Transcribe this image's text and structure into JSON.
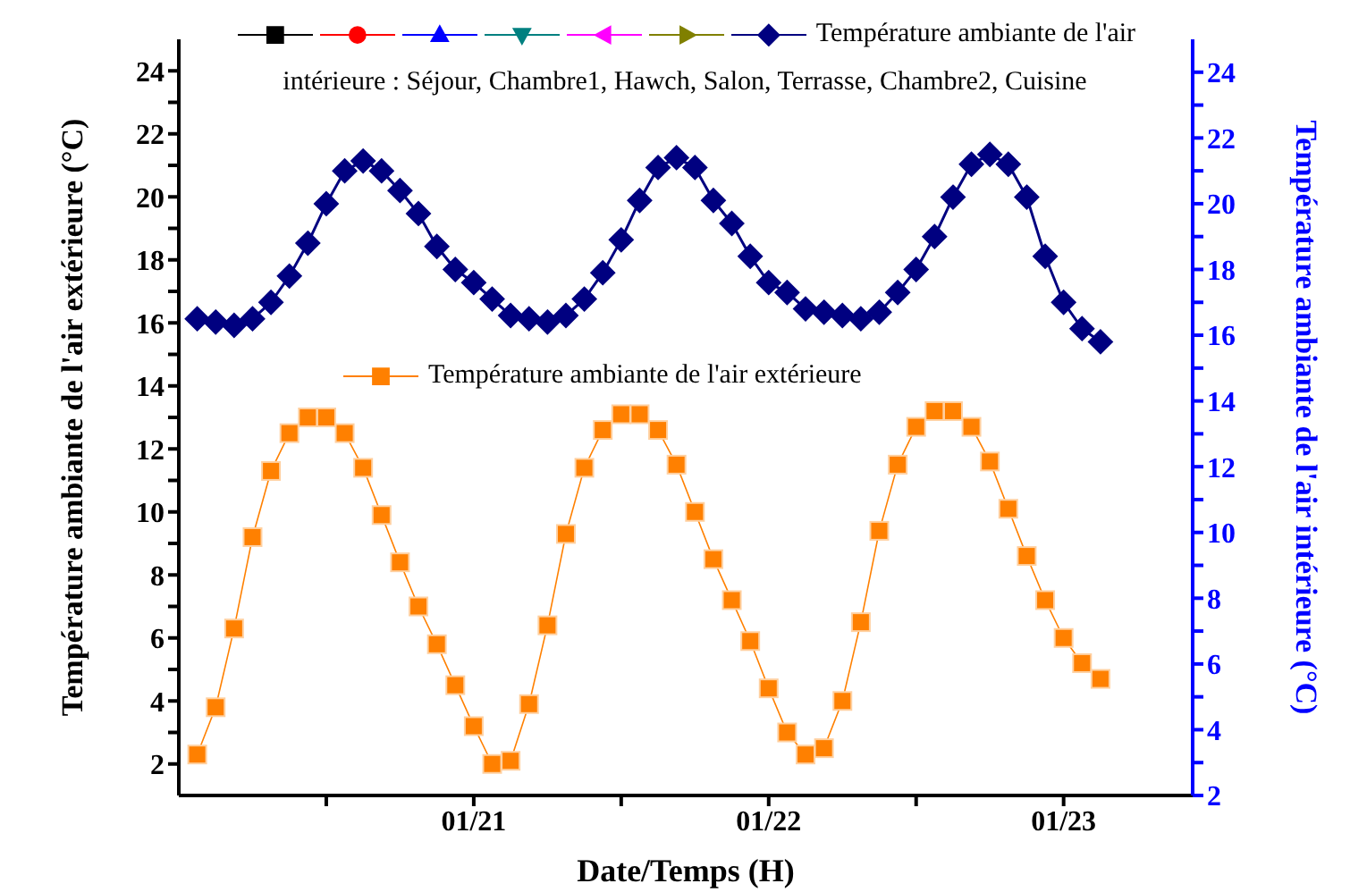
{
  "chart_data": {
    "type": "line",
    "xlabel": "Date/Temps (H)",
    "ylabel": "Température ambiante de l'air extérieure (°C)",
    "y2label": "Température ambiante de l'air intérieure (°C)",
    "legend": "top",
    "line_style": "solid",
    "x": [
      "--01-20T01:30",
      "--01-20T03:00",
      "--01-20T04:30",
      "--01-20T06:00",
      "--01-20T07:30",
      "--01-20T09:00",
      "--01-20T10:30",
      "--01-20T12:00",
      "--01-20T13:30",
      "--01-20T15:00",
      "--01-20T16:30",
      "--01-20T18:00",
      "--01-20T19:30",
      "--01-20T21:00",
      "--01-20T22:30",
      "--01-21T00:00",
      "--01-21T01:30",
      "--01-21T03:00",
      "--01-21T04:30",
      "--01-21T06:00",
      "--01-21T07:30",
      "--01-21T09:00",
      "--01-21T10:30",
      "--01-21T12:00",
      "--01-21T13:30",
      "--01-21T15:00",
      "--01-21T16:30",
      "--01-21T18:00",
      "--01-21T19:30",
      "--01-21T21:00",
      "--01-21T22:30",
      "--01-22T00:00",
      "--01-22T01:30",
      "--01-22T03:00",
      "--01-22T04:30",
      "--01-22T06:00",
      "--01-22T07:30",
      "--01-22T09:00",
      "--01-22T10:30",
      "--01-22T12:00",
      "--01-22T13:30",
      "--01-22T15:00",
      "--01-22T16:30",
      "--01-22T18:00",
      "--01-22T19:30",
      "--01-22T21:00",
      "--01-22T22:30",
      "--01-23T00:00",
      "--01-23T01:30",
      "--01-23T03:00"
    ],
    "xlim": [
      "--01-20T00:00",
      "--01-23T10:30"
    ],
    "xticks": [
      {
        "value": "--01-20T12:00",
        "label": null
      },
      {
        "value": "--01-21",
        "label": "01/21"
      },
      {
        "value": "--01-21T12:00",
        "label": null
      },
      {
        "value": "--01-22",
        "label": "01/22"
      },
      {
        "value": "--01-22T12:00",
        "label": null
      },
      {
        "value": "--01-23",
        "label": "01/23"
      }
    ],
    "ylim": [
      1,
      25
    ],
    "yticks": [
      2,
      {
        "value": 3,
        "label": null
      },
      4,
      {
        "value": 5,
        "label": null
      },
      6,
      {
        "value": 7,
        "label": null
      },
      8,
      {
        "value": 9,
        "label": null
      },
      10,
      {
        "value": 11,
        "label": null
      },
      12,
      {
        "value": 13,
        "label": null
      },
      14,
      {
        "value": 15,
        "label": null
      },
      16,
      {
        "value": 17,
        "label": null
      },
      18,
      {
        "value": 19,
        "label": null
      },
      20,
      {
        "value": 21,
        "label": null
      },
      22,
      {
        "value": 23,
        "label": null
      },
      24
    ],
    "y2lim": [
      2,
      25
    ],
    "y2ticks": [
      2,
      {
        "value": 3,
        "label": null
      },
      4,
      {
        "value": 5,
        "label": null
      },
      6,
      {
        "value": 7,
        "label": null
      },
      8,
      {
        "value": 9,
        "label": null
      },
      10,
      {
        "value": 11,
        "label": null
      },
      12,
      {
        "value": 13,
        "label": null
      },
      14,
      {
        "value": 15,
        "label": null
      },
      16,
      {
        "value": 17,
        "label": null
      },
      18,
      {
        "value": 19,
        "label": null
      },
      20,
      {
        "value": 21,
        "label": null
      },
      22,
      {
        "value": 23,
        "label": null
      },
      24
    ],
    "series": [
      {
        "name": "Température ambiante de l'air intérieure : Séjour, Chambre1, Hawch, Salon, Terrasse, Chambre2, Cuisine",
        "color": "#000080",
        "marker": "diamond",
        "axis": "y2",
        "values": [
          16.5,
          16.4,
          16.3,
          16.5,
          17.0,
          17.8,
          18.8,
          20.0,
          21.0,
          21.3,
          21.0,
          20.4,
          19.7,
          18.7,
          18.0,
          17.6,
          17.1,
          16.6,
          16.5,
          16.4,
          16.6,
          17.1,
          17.9,
          18.9,
          20.1,
          21.1,
          21.4,
          21.1,
          20.1,
          19.4,
          18.4,
          17.6,
          17.3,
          16.8,
          16.7,
          16.6,
          16.5,
          16.7,
          17.3,
          18.0,
          19.0,
          20.2,
          21.2,
          21.5,
          21.2,
          20.2,
          18.4,
          17.0,
          16.2,
          15.8
        ]
      },
      {
        "color": "#000000",
        "marker": "square",
        "axis": "y2",
        "values": [
          null,
          null,
          null,
          null,
          null,
          null,
          null,
          null,
          null,
          null,
          null,
          null,
          null,
          null,
          null,
          null,
          null,
          null,
          null,
          null,
          null,
          null,
          null,
          null,
          null,
          null,
          null,
          null,
          null,
          null,
          null,
          null,
          null,
          null,
          null,
          null,
          null,
          null,
          null,
          null,
          null,
          null,
          null,
          null,
          null,
          null,
          null,
          null,
          null,
          null
        ]
      },
      {
        "color": "#ff0000",
        "marker": "circle",
        "axis": "y2",
        "values": [
          null,
          null,
          null,
          null,
          null,
          null,
          null,
          null,
          null,
          null,
          null,
          null,
          null,
          null,
          null,
          null,
          null,
          null,
          null,
          null,
          null,
          null,
          null,
          null,
          null,
          null,
          null,
          null,
          null,
          null,
          null,
          null,
          null,
          null,
          null,
          null,
          null,
          null,
          null,
          null,
          null,
          null,
          null,
          null,
          null,
          null,
          null,
          null,
          null,
          null
        ]
      },
      {
        "color": "#0000ff",
        "marker": "triangle",
        "axis": "y2",
        "values": [
          null,
          null,
          null,
          null,
          null,
          null,
          null,
          null,
          null,
          null,
          null,
          null,
          null,
          null,
          null,
          null,
          null,
          null,
          null,
          null,
          null,
          null,
          null,
          null,
          null,
          null,
          null,
          null,
          null,
          null,
          null,
          null,
          null,
          null,
          null,
          null,
          null,
          null,
          null,
          null,
          null,
          null,
          null,
          null,
          null,
          null,
          null,
          null,
          null,
          null
        ]
      },
      {
        "color": "#008080",
        "marker": "triangle-down",
        "axis": "y2",
        "values": [
          null,
          null,
          null,
          null,
          null,
          null,
          null,
          null,
          null,
          null,
          null,
          null,
          null,
          null,
          null,
          null,
          null,
          null,
          null,
          null,
          null,
          null,
          null,
          null,
          null,
          null,
          null,
          null,
          null,
          null,
          null,
          null,
          null,
          null,
          null,
          null,
          null,
          null,
          null,
          null,
          null,
          null,
          null,
          null,
          null,
          null,
          null,
          null,
          null,
          null
        ]
      },
      {
        "color": "#ff00ff",
        "marker": "triangle-left",
        "axis": "y2",
        "values": [
          null,
          null,
          null,
          null,
          null,
          null,
          null,
          null,
          null,
          null,
          null,
          null,
          null,
          null,
          null,
          null,
          null,
          null,
          null,
          null,
          null,
          null,
          null,
          null,
          null,
          null,
          null,
          null,
          null,
          null,
          null,
          null,
          null,
          null,
          null,
          null,
          null,
          null,
          null,
          null,
          null,
          null,
          null,
          null,
          null,
          null,
          null,
          null,
          null,
          null
        ]
      },
      {
        "color": "#808000",
        "marker": "triangle-right",
        "axis": "y2",
        "values": [
          null,
          null,
          null,
          null,
          null,
          null,
          null,
          null,
          null,
          null,
          null,
          null,
          null,
          null,
          null,
          null,
          null,
          null,
          null,
          null,
          null,
          null,
          null,
          null,
          null,
          null,
          null,
          null,
          null,
          null,
          null,
          null,
          null,
          null,
          null,
          null,
          null,
          null,
          null,
          null,
          null,
          null,
          null,
          null,
          null,
          null,
          null,
          null,
          null,
          null
        ]
      },
      {
        "name": "Température ambiante de l'air extérieure",
        "color": "#ff8000",
        "marker": "square",
        "values": [
          2.3,
          3.8,
          6.3,
          9.2,
          11.3,
          12.5,
          13.0,
          13.0,
          12.5,
          11.4,
          9.9,
          8.4,
          7.0,
          5.8,
          4.5,
          3.2,
          2.0,
          2.1,
          3.9,
          6.4,
          9.3,
          11.4,
          12.6,
          13.1,
          13.1,
          12.6,
          11.5,
          10.0,
          8.5,
          7.2,
          5.9,
          4.4,
          3.0,
          2.3,
          2.5,
          4.0,
          6.5,
          9.4,
          11.5,
          12.7,
          13.2,
          13.2,
          12.7,
          11.6,
          10.1,
          8.6,
          7.2,
          6.0,
          5.2,
          4.7
        ]
      }
    ]
  }
}
